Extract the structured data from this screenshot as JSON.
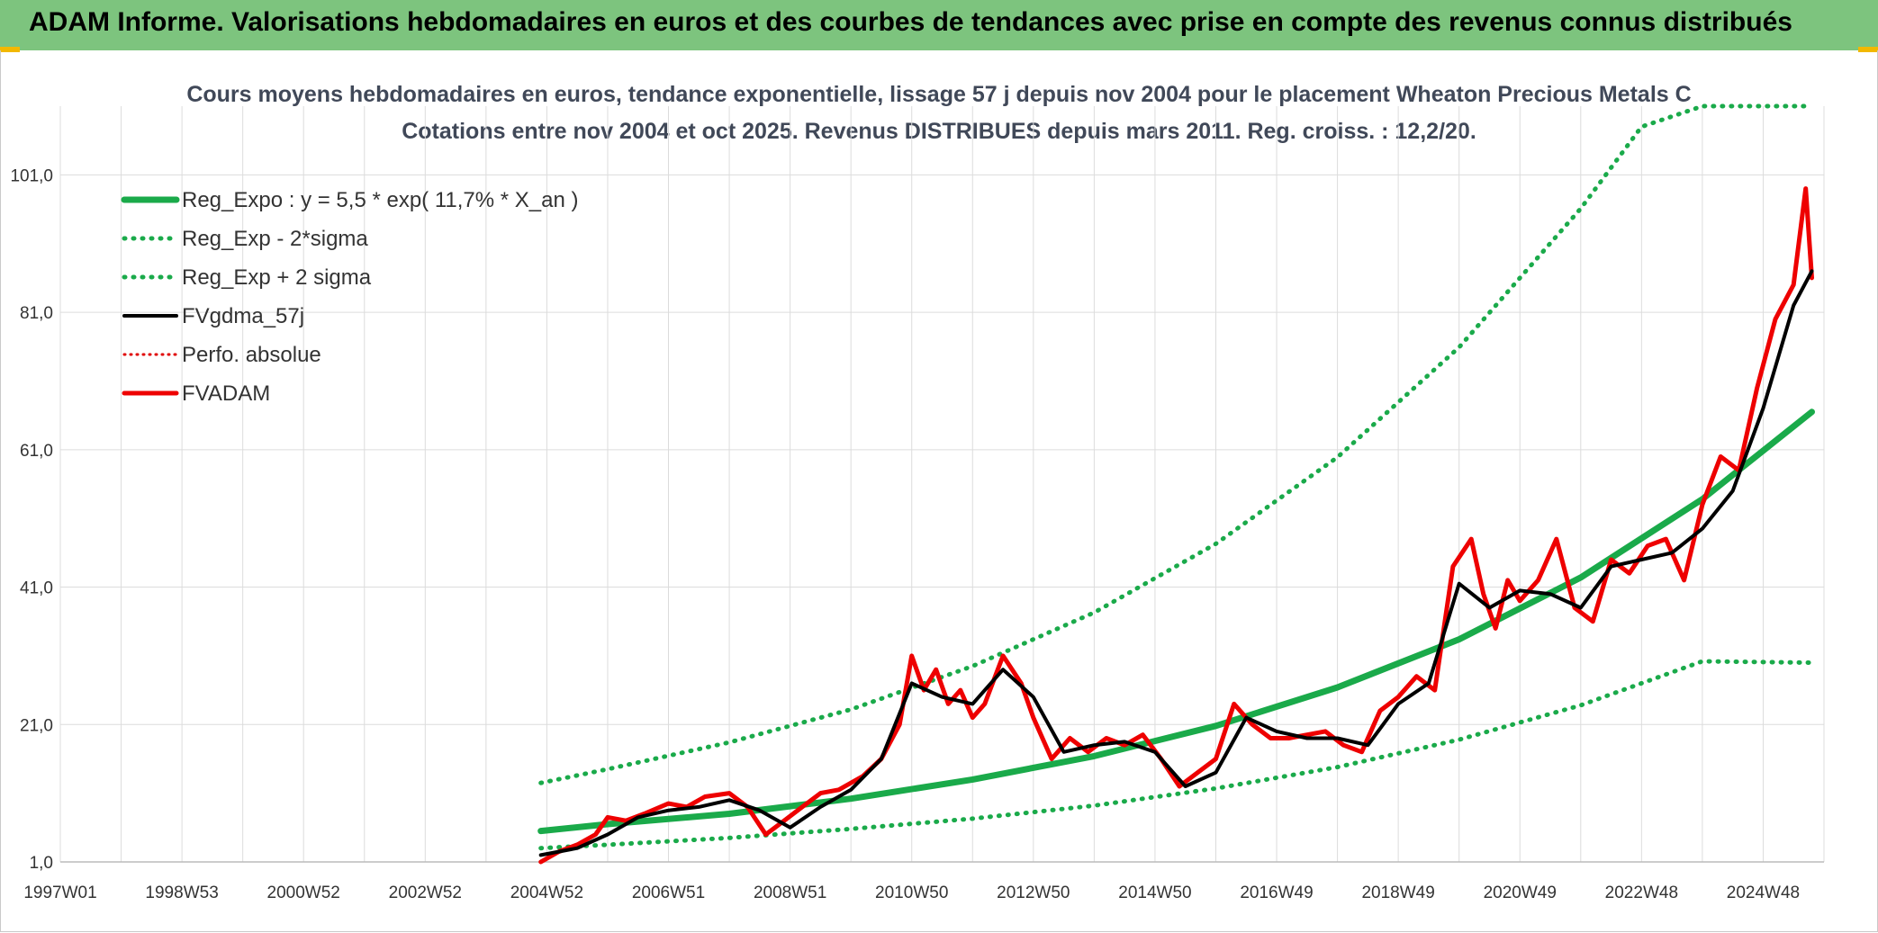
{
  "header": {
    "title": "ADAM Informe. Valorisations hebdomadaires en euros et des courbes de tendances avec prise en compte des revenus connus distribués"
  },
  "colors": {
    "header_bg": "#7dc47e",
    "reg_expo": "#1aaa4a",
    "sigma": "#1aaa4a",
    "fvgdma": "#000000",
    "perfo": "#e00000",
    "fvadam": "#ee0000",
    "grid": "#dcdcdc"
  },
  "chart_data": {
    "type": "line",
    "title_lines": [
      "Cours moyens hebdomadaires en euros, tendance exponentielle, lissage 57 j depuis nov 2004 pour le placement Wheaton Precious Metals C",
      "Cotations entre nov 2004 et oct 2025. Revenus DISTRIBUES depuis mars 2011. Reg. croiss. : 12,2/20."
    ],
    "y_ticks": [
      "1,0",
      "21,0",
      "41,0",
      "61,0",
      "81,0",
      "101,0"
    ],
    "y_tick_values": [
      1,
      21,
      41,
      61,
      81,
      101
    ],
    "ylim": [
      1,
      111
    ],
    "x_ticks": [
      "1997W01",
      "1998W53",
      "2000W52",
      "2002W52",
      "2004W52",
      "2006W51",
      "2008W51",
      "2010W50",
      "2012W50",
      "2014W50",
      "2016W49",
      "2018W49",
      "2020W49",
      "2022W48",
      "2024W48"
    ],
    "x_tick_years": [
      1997,
      1999,
      2001,
      2003,
      2005,
      2007,
      2009,
      2011,
      2013,
      2015,
      2017,
      2019,
      2021,
      2023,
      2025
    ],
    "xlim": [
      1997,
      2026
    ],
    "grid": true,
    "legend_position": "top-left",
    "series": [
      {
        "name": "Reg_Expo : y = 5,5 * exp( 11,7% *  X_an )",
        "style": "solid-thick",
        "x": [
          2004.9,
          2006,
          2008,
          2010,
          2012,
          2014,
          2016,
          2018,
          2020,
          2022,
          2024,
          2025.8
        ],
        "y": [
          5.5,
          6.5,
          8.0,
          10.2,
          13.0,
          16.4,
          20.8,
          26.4,
          33.4,
          42.4,
          53.8,
          66.5
        ]
      },
      {
        "name": "Reg_Exp - 2*sigma",
        "style": "dotted",
        "x": [
          2004.9,
          2006,
          2008,
          2010,
          2012,
          2014,
          2016,
          2018,
          2020,
          2022,
          2024,
          2025.8
        ],
        "y": [
          3.0,
          3.5,
          4.5,
          5.8,
          7.3,
          9.2,
          11.7,
          14.8,
          18.8,
          23.8,
          30.2,
          30.0
        ]
      },
      {
        "name": "Reg_Exp + 2 sigma",
        "style": "dotted",
        "x": [
          2004.9,
          2006,
          2008,
          2010,
          2012,
          2014,
          2016,
          2018,
          2020,
          2022,
          2023,
          2024,
          2025.8
        ],
        "y": [
          12.5,
          14.5,
          18.4,
          23.2,
          29.5,
          37.3,
          47.3,
          59.9,
          75.9,
          96.1,
          108.0,
          111.0,
          111.0
        ]
      },
      {
        "name": "FVgdma_57j",
        "style": "solid",
        "x": [
          2004.9,
          2005.5,
          2006,
          2006.5,
          2007,
          2007.5,
          2008,
          2008.5,
          2009,
          2009.5,
          2010,
          2010.5,
          2011,
          2011.5,
          2012,
          2012.5,
          2013,
          2013.5,
          2014,
          2014.5,
          2015,
          2015.5,
          2016,
          2016.5,
          2017,
          2017.5,
          2018,
          2018.5,
          2019,
          2019.5,
          2020,
          2020.5,
          2021,
          2021.5,
          2022,
          2022.5,
          2023,
          2023.5,
          2024,
          2024.5,
          2025,
          2025.5,
          2025.8
        ],
        "y": [
          2.0,
          3.0,
          5.0,
          7.5,
          8.5,
          9.0,
          10.0,
          8.5,
          6.0,
          9.0,
          11.5,
          16.0,
          27.0,
          25.0,
          24.0,
          29.0,
          25.0,
          17.0,
          18.0,
          18.5,
          17.0,
          12.0,
          14.0,
          22.0,
          20.0,
          19.0,
          19.0,
          18.0,
          24.0,
          27.0,
          41.5,
          38.0,
          40.5,
          40.0,
          38.0,
          44.0,
          45.0,
          46.0,
          49.5,
          55.0,
          67.0,
          82.0,
          87.0
        ]
      },
      {
        "name": "Perfo. absolue",
        "style": "dotted",
        "x": [],
        "y": []
      },
      {
        "name": "FVADAM",
        "style": "solid-thick",
        "x": [
          2004.9,
          2005.2,
          2005.5,
          2005.8,
          2006,
          2006.3,
          2006.6,
          2007,
          2007.3,
          2007.6,
          2008,
          2008.3,
          2008.6,
          2008.9,
          2009.2,
          2009.5,
          2009.8,
          2010.2,
          2010.5,
          2010.8,
          2011,
          2011.2,
          2011.4,
          2011.6,
          2011.8,
          2012,
          2012.2,
          2012.5,
          2012.8,
          2013,
          2013.3,
          2013.6,
          2013.9,
          2014.2,
          2014.5,
          2014.8,
          2015.1,
          2015.4,
          2015.7,
          2016,
          2016.3,
          2016.6,
          2016.9,
          2017.2,
          2017.5,
          2017.8,
          2018.1,
          2018.4,
          2018.7,
          2019,
          2019.3,
          2019.6,
          2019.9,
          2020.2,
          2020.4,
          2020.6,
          2020.8,
          2021,
          2021.3,
          2021.6,
          2021.9,
          2022.2,
          2022.5,
          2022.8,
          2023.1,
          2023.4,
          2023.7,
          2024,
          2024.3,
          2024.6,
          2024.9,
          2025.2,
          2025.5,
          2025.7,
          2025.8
        ],
        "y": [
          1.0,
          2.5,
          3.5,
          5.0,
          7.5,
          7.0,
          8.0,
          9.5,
          9.0,
          10.5,
          11.0,
          9.0,
          5.0,
          7.0,
          9.0,
          11.0,
          11.5,
          13.5,
          16.0,
          21.0,
          31.0,
          26.0,
          29.0,
          24.0,
          26.0,
          22.0,
          24.0,
          31.0,
          27.0,
          22.0,
          16.0,
          19.0,
          17.0,
          19.0,
          18.0,
          19.5,
          16.0,
          12.0,
          14.0,
          16.0,
          24.0,
          21.0,
          19.0,
          19.0,
          19.5,
          20.0,
          18.0,
          17.0,
          23.0,
          25.0,
          28.0,
          26.0,
          44.0,
          48.0,
          40.0,
          35.0,
          42.0,
          39.0,
          42.0,
          48.0,
          38.0,
          36.0,
          45.0,
          43.0,
          47.0,
          48.0,
          42.0,
          53.0,
          60.0,
          58.0,
          70.0,
          80.0,
          85.0,
          99.0,
          86.0
        ]
      }
    ]
  }
}
